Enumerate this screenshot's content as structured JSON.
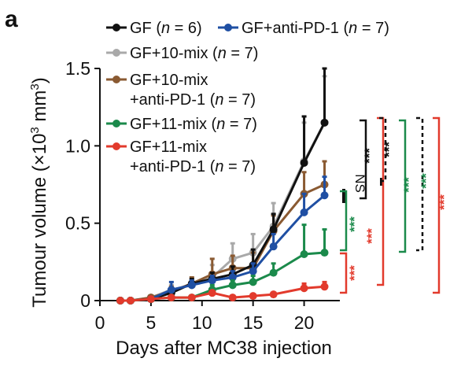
{
  "panel_label": "a",
  "colors": {
    "GF": "#111111",
    "GF_antiPD1": "#1f4fa3",
    "GF_10mix": "#a9a9a9",
    "GF_10mix_antiPD1": "#8a5a32",
    "GF_11mix": "#1b8a4b",
    "GF_11mix_antiPD1": "#e23a2c"
  },
  "chart_data": {
    "type": "line",
    "xlabel": "Days after MC38 injection",
    "ylabel": "Tumour volume (×10³ mm³)",
    "ylabel_parts": {
      "pre": "Tumour volume (×10",
      "sup": "3",
      "post": " mm",
      "sup2": "3",
      "end": ")"
    },
    "xlim": [
      0,
      23.5
    ],
    "ylim": [
      0,
      1.5
    ],
    "xticks": [
      0,
      5,
      10,
      15,
      20
    ],
    "xtick_labels": [
      "0",
      "5",
      "10",
      "15",
      "20"
    ],
    "yticks": [
      0,
      0.5,
      1.0,
      1.5
    ],
    "ytick_labels": [
      "0",
      "0.5",
      "1.0",
      "1.5"
    ],
    "x": [
      2,
      3,
      5,
      7,
      9,
      11,
      13,
      15,
      17,
      20,
      22
    ],
    "series": [
      {
        "key": "GF",
        "legend": {
          "name": "GF",
          "n": "6"
        },
        "values": [
          0,
          0,
          0.01,
          0.05,
          0.11,
          0.14,
          0.17,
          0.23,
          0.46,
          0.89,
          1.15
        ],
        "errors": [
          0,
          0,
          0.01,
          0.03,
          0.03,
          0.04,
          0.05,
          0.1,
          0.1,
          0.3,
          0.35
        ]
      },
      {
        "key": "GF_antiPD1",
        "legend": {
          "name": "GF+anti-PD-1",
          "n": "7"
        },
        "values": [
          0,
          0,
          0.01,
          0.07,
          0.1,
          0.13,
          0.15,
          0.19,
          0.35,
          0.57,
          0.68
        ],
        "errors": [
          0,
          0,
          0.01,
          0.05,
          0.03,
          0.03,
          0.04,
          0.05,
          0.08,
          0.12,
          0.12
        ]
      },
      {
        "key": "GF_10mix",
        "legend": {
          "name": "GF+10-mix",
          "n": "7"
        },
        "values": [
          0,
          0,
          0.02,
          0.07,
          0.1,
          0.15,
          0.27,
          0.31,
          0.48,
          0.9,
          1.15
        ],
        "errors": [
          0,
          0,
          0.01,
          0.03,
          0.03,
          0.08,
          0.1,
          0.12,
          0.15,
          0.25,
          0.3
        ]
      },
      {
        "key": "GF_10mix_antiPD1",
        "legend": {
          "name": "GF+10-mix",
          "name2": "+anti-PD-1",
          "n": "7"
        },
        "values": [
          0,
          0,
          0.02,
          0.06,
          0.11,
          0.17,
          0.21,
          0.21,
          0.45,
          0.69,
          0.75
        ],
        "errors": [
          0,
          0,
          0.01,
          0.03,
          0.04,
          0.1,
          0.08,
          0.1,
          0.1,
          0.14,
          0.15
        ]
      },
      {
        "key": "GF_11mix",
        "legend": {
          "name": "GF+11-mix",
          "n": "7"
        },
        "values": [
          0,
          0,
          0.01,
          0.02,
          0.02,
          0.07,
          0.1,
          0.12,
          0.18,
          0.3,
          0.31
        ],
        "errors": [
          0,
          0,
          0.01,
          0.01,
          0.01,
          0.03,
          0.03,
          0.04,
          0.06,
          0.19,
          0.15
        ]
      },
      {
        "key": "GF_11mix_antiPD1",
        "legend": {
          "name": "GF+11-mix",
          "name2": "+anti-PD-1",
          "n": "7"
        },
        "values": [
          0,
          0,
          0.01,
          0.02,
          0.02,
          0.05,
          0.02,
          0.03,
          0.04,
          0.08,
          0.09
        ],
        "errors": [
          0,
          0,
          0.01,
          0.01,
          0.01,
          0.01,
          0.01,
          0.01,
          0.01,
          0.03,
          0.03
        ]
      }
    ],
    "legend_placement": "top",
    "grid": false
  },
  "significance": {
    "red_near_axis": "***",
    "green_near_axis": "***",
    "ns": "NS",
    "black_1": "***",
    "black_2": "***",
    "red_mid": "***",
    "green_1": "***",
    "green_2": "***",
    "red_far": "***"
  }
}
